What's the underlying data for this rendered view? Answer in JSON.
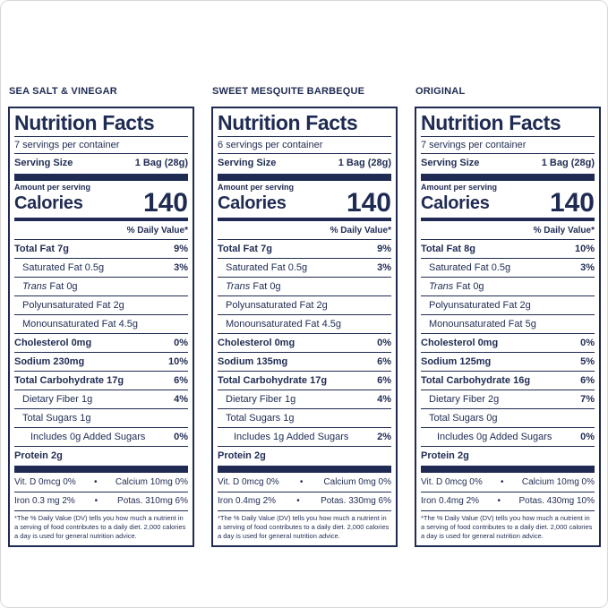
{
  "colors": {
    "accent": "#1f2b52",
    "frame": "#d8d8d8",
    "background": "#ffffff"
  },
  "separators": {
    "bullet": "•"
  },
  "labels": [
    {
      "flavor": "SEA SALT & VINEGAR",
      "title": "Nutrition Facts",
      "servings": "7 servings per container",
      "serving_size_label": "Serving Size",
      "serving_size_value": "1 Bag (28g)",
      "amount_label": "Amount per serving",
      "calories_label": "Calories",
      "calories_value": "140",
      "daily_value_header": "% Daily Value*",
      "rows": [
        {
          "text": "Total Fat 7g",
          "dv": "9%",
          "bold": true,
          "indent": 0
        },
        {
          "text": "Saturated Fat 0.5g",
          "dv": "3%",
          "indent": 1
        },
        {
          "italic": "Trans",
          "text": " Fat 0g",
          "dv": "",
          "indent": 1
        },
        {
          "text": "Polyunsaturated Fat 2g",
          "dv": "",
          "indent": 1
        },
        {
          "text": "Monounsaturated Fat 4.5g",
          "dv": "",
          "indent": 1
        },
        {
          "text": "Cholesterol 0mg",
          "dv": "0%",
          "bold": true,
          "indent": 0
        },
        {
          "text": "Sodium 230mg",
          "dv": "10%",
          "bold": true,
          "indent": 0
        },
        {
          "text": "Total Carbohydrate 17g",
          "dv": "6%",
          "bold": true,
          "indent": 0
        },
        {
          "text": "Dietary Fiber 1g",
          "dv": "4%",
          "indent": 1
        },
        {
          "text": "Total Sugars 1g",
          "dv": "",
          "indent": 1
        },
        {
          "text": "Includes 0g Added Sugars",
          "dv": "0%",
          "indent": 2
        },
        {
          "text": "Protein 2g",
          "dv": "",
          "bold": true,
          "indent": 0
        }
      ],
      "micros": [
        {
          "left": "Vit. D 0mcg 0%",
          "right": "Calcium 10mg 0%"
        },
        {
          "left": "Iron 0.3 mg 2%",
          "right": "Potas. 310mg 6%"
        }
      ],
      "footnote": "*The % Daily Value (DV) tells you how much a nutrient in a serving of food contributes to a daily diet. 2,000 calories a day is used for general nutrition advice."
    },
    {
      "flavor": "SWEET MESQUITE BARBEQUE",
      "title": "Nutrition Facts",
      "servings": "6 servings per container",
      "serving_size_label": "Serving Size",
      "serving_size_value": "1 Bag (28g)",
      "amount_label": "Amount per serving",
      "calories_label": "Calories",
      "calories_value": "140",
      "daily_value_header": "% Daily Value*",
      "rows": [
        {
          "text": "Total Fat 7g",
          "dv": "9%",
          "bold": true,
          "indent": 0
        },
        {
          "text": "Saturated Fat 0.5g",
          "dv": "3%",
          "indent": 1
        },
        {
          "italic": "Trans",
          "text": " Fat 0g",
          "dv": "",
          "indent": 1
        },
        {
          "text": "Polyunsaturated Fat 2g",
          "dv": "",
          "indent": 1
        },
        {
          "text": "Monounsaturated Fat 4.5g",
          "dv": "",
          "indent": 1
        },
        {
          "text": "Cholesterol 0mg",
          "dv": "0%",
          "bold": true,
          "indent": 0
        },
        {
          "text": "Sodium 135mg",
          "dv": "6%",
          "bold": true,
          "indent": 0
        },
        {
          "text": "Total Carbohydrate 17g",
          "dv": "6%",
          "bold": true,
          "indent": 0
        },
        {
          "text": "Dietary Fiber 1g",
          "dv": "4%",
          "indent": 1
        },
        {
          "text": "Total Sugars 1g",
          "dv": "",
          "indent": 1
        },
        {
          "text": "Includes 1g Added Sugars",
          "dv": "2%",
          "indent": 2
        },
        {
          "text": "Protein 2g",
          "dv": "",
          "bold": true,
          "indent": 0
        }
      ],
      "micros": [
        {
          "left": "Vit. D 0mcg 0%",
          "right": "Calcium 0mg 0%"
        },
        {
          "left": "Iron 0.4mg 2%",
          "right": "Potas. 330mg 6%"
        }
      ],
      "footnote": "*The % Daily Value (DV) tells you how much a nutrient in a serving of food contributes to a daily diet. 2,000 calories a day is used for general nutrition advice."
    },
    {
      "flavor": "ORIGINAL",
      "title": "Nutrition Facts",
      "servings": "7 servings per container",
      "serving_size_label": "Serving Size",
      "serving_size_value": "1 Bag (28g)",
      "amount_label": "Amount per serving",
      "calories_label": "Calories",
      "calories_value": "140",
      "daily_value_header": "% Daily Value*",
      "rows": [
        {
          "text": "Total Fat 8g",
          "dv": "10%",
          "bold": true,
          "indent": 0
        },
        {
          "text": "Saturated Fat 0.5g",
          "dv": "3%",
          "indent": 1
        },
        {
          "italic": "Trans",
          "text": " Fat 0g",
          "dv": "",
          "indent": 1
        },
        {
          "text": "Polyunsaturated Fat 2g",
          "dv": "",
          "indent": 1
        },
        {
          "text": "Monounsaturated Fat 5g",
          "dv": "",
          "indent": 1
        },
        {
          "text": "Cholesterol 0mg",
          "dv": "0%",
          "bold": true,
          "indent": 0
        },
        {
          "text": "Sodium 125mg",
          "dv": "5%",
          "bold": true,
          "indent": 0
        },
        {
          "text": "Total Carbohydrate 16g",
          "dv": "6%",
          "bold": true,
          "indent": 0
        },
        {
          "text": "Dietary Fiber 2g",
          "dv": "7%",
          "indent": 1
        },
        {
          "text": "Total Sugars 0g",
          "dv": "",
          "indent": 1
        },
        {
          "text": "Includes 0g Added Sugars",
          "dv": "0%",
          "indent": 2
        },
        {
          "text": "Protein 2g",
          "dv": "",
          "bold": true,
          "indent": 0
        }
      ],
      "micros": [
        {
          "left": "Vit. D 0mcg 0%",
          "right": "Calcium 10mg 0%"
        },
        {
          "left": "Iron 0.4mg 2%",
          "right": "Potas. 430mg 10%"
        }
      ],
      "footnote": "*The % Daily Value (DV) tells you how much a nutrient in a serving of food contributes to a daily diet. 2,000 calories a day is used for general nutrition advice."
    }
  ]
}
